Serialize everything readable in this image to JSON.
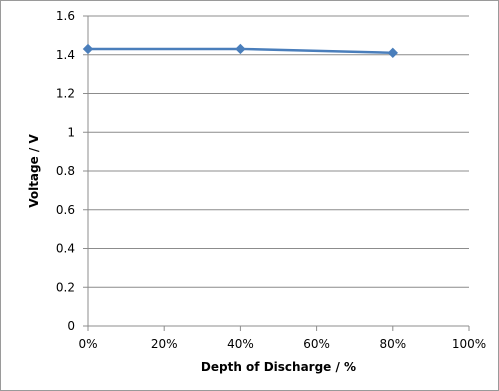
{
  "chart_data": {
    "type": "line",
    "x": [
      0,
      40,
      80
    ],
    "series": [
      {
        "values": [
          1.43,
          1.43,
          1.41
        ],
        "color": "#4a7ebb",
        "marker": "diamond"
      }
    ],
    "xlabel": "Depth of Discharge / %",
    "ylabel": "Voltage  /  V",
    "xlim": [
      0,
      100
    ],
    "ylim": [
      0,
      1.6
    ],
    "xticks": [
      "0%",
      "20%",
      "40%",
      "60%",
      "80%",
      "100%"
    ],
    "yticks": [
      "0",
      "0.2",
      "0.4",
      "0.6",
      "0.8",
      "1",
      "1.2",
      "1.4",
      "1.6"
    ],
    "grid": "horizontal",
    "legend": "none"
  }
}
